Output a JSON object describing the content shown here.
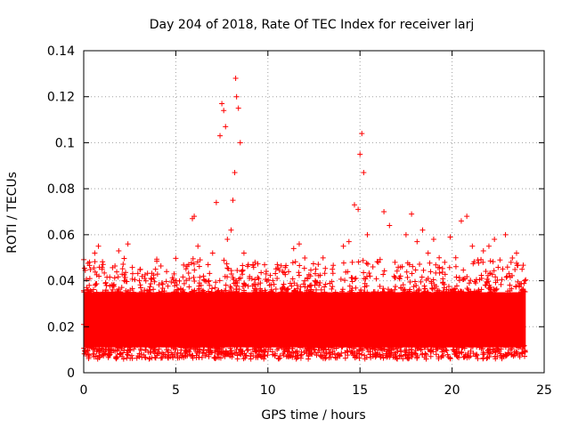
{
  "chart_data": {
    "type": "scatter",
    "title": "Day 204 of 2018, Rate Of TEC Index for receiver larj",
    "xlabel": "GPS time / hours",
    "ylabel": "ROTI / TECUs",
    "xlim": [
      0,
      25
    ],
    "ylim": [
      0,
      0.14
    ],
    "x_ticks": [
      0,
      5,
      10,
      15,
      20,
      25
    ],
    "x_tick_labels": [
      "0",
      "5",
      "10",
      "15",
      "20",
      "25"
    ],
    "y_ticks": [
      0,
      0.02,
      0.04,
      0.06,
      0.08,
      0.1,
      0.12,
      0.14
    ],
    "y_tick_labels": [
      "0",
      "0.02",
      "0.04",
      "0.06",
      "0.08",
      "0.1",
      "0.12",
      "0.14"
    ],
    "grid": true,
    "marker": "+",
    "color": "#ff0000",
    "series": [
      {
        "x": [
          0.0,
          0.3,
          0.6,
          0.8,
          1.0,
          1.3,
          1.6,
          1.9,
          2.2,
          2.4,
          2.7,
          3.0,
          3.3,
          3.6,
          3.9,
          4.2,
          4.5,
          4.8,
          5.1,
          5.4,
          5.7,
          5.9,
          6.0,
          6.2,
          6.5,
          6.8,
          7.0,
          7.2,
          7.4,
          7.5,
          7.6,
          7.7,
          7.8,
          8.0,
          8.1,
          8.2,
          8.25,
          8.3,
          8.4,
          8.5,
          8.7,
          9.0,
          9.3,
          9.6,
          9.9,
          10.2,
          10.5,
          10.8,
          11.1,
          11.4,
          11.7,
          12.0,
          12.3,
          12.6,
          12.9,
          13.2,
          13.5,
          13.8,
          14.1,
          14.4,
          14.7,
          14.9,
          15.0,
          15.1,
          15.2,
          15.4,
          15.7,
          16.0,
          16.3,
          16.6,
          16.9,
          17.2,
          17.5,
          17.8,
          18.1,
          18.4,
          18.7,
          19.0,
          19.3,
          19.6,
          19.9,
          20.2,
          20.5,
          20.8,
          21.1,
          21.4,
          21.7,
          22.0,
          22.3,
          22.6,
          22.9,
          23.2,
          23.5,
          23.8,
          23.95,
          0.5,
          1.5,
          2.5,
          3.5,
          4.5,
          5.5,
          6.5,
          7.5,
          8.5,
          9.5,
          10.5,
          11.5,
          12.5,
          13.5,
          14.5,
          15.5,
          16.5,
          17.5,
          18.5,
          19.5,
          20.5,
          21.5,
          22.5,
          23.5
        ],
        "y": [
          0.021,
          0.038,
          0.052,
          0.055,
          0.045,
          0.022,
          0.038,
          0.053,
          0.04,
          0.056,
          0.031,
          0.024,
          0.041,
          0.036,
          0.045,
          0.02,
          0.044,
          0.031,
          0.029,
          0.036,
          0.047,
          0.067,
          0.068,
          0.055,
          0.042,
          0.04,
          0.052,
          0.074,
          0.103,
          0.117,
          0.114,
          0.107,
          0.058,
          0.062,
          0.075,
          0.087,
          0.128,
          0.12,
          0.115,
          0.1,
          0.052,
          0.041,
          0.048,
          0.035,
          0.043,
          0.036,
          0.041,
          0.037,
          0.03,
          0.054,
          0.056,
          0.04,
          0.038,
          0.045,
          0.036,
          0.034,
          0.045,
          0.032,
          0.055,
          0.057,
          0.073,
          0.071,
          0.095,
          0.104,
          0.087,
          0.06,
          0.046,
          0.048,
          0.07,
          0.064,
          0.048,
          0.042,
          0.06,
          0.069,
          0.057,
          0.062,
          0.052,
          0.058,
          0.05,
          0.048,
          0.059,
          0.05,
          0.066,
          0.068,
          0.055,
          0.049,
          0.053,
          0.055,
          0.058,
          0.049,
          0.06,
          0.048,
          0.052,
          0.045,
          0.04,
          0.012,
          0.01,
          0.011,
          0.009,
          0.01,
          0.011,
          0.01,
          0.009,
          0.008,
          0.011,
          0.01,
          0.009,
          0.01,
          0.008,
          0.009,
          0.012,
          0.01,
          0.009,
          0.011,
          0.01,
          0.009,
          0.011,
          0.01,
          0.009
        ]
      }
    ]
  }
}
